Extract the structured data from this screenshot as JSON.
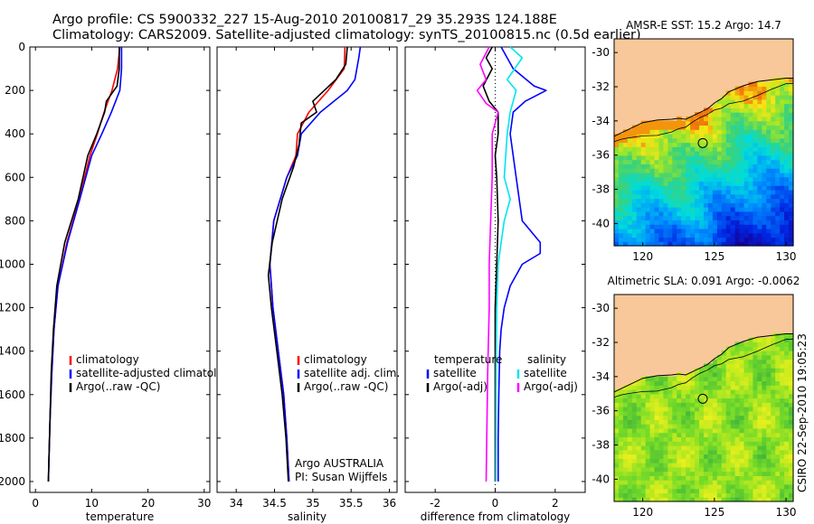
{
  "header": {
    "line1": "Argo profile: CS 5900332_227 15-Aug-2010 20100817_29 35.293S 124.188E",
    "line2": "Climatology: CARS2009. Satellite-adjusted climatology: synTS_20100815.nc (0.5d earlier)"
  },
  "side_label": "CSIRO 22-Sep-2010 19:05:23",
  "colors": {
    "red": "#ff0000",
    "blue": "#0000ff",
    "black": "#000000",
    "cyan": "#00e5ee",
    "magenta": "#ff00ff",
    "land": "#f8c89a"
  },
  "chart_data": [
    {
      "id": "temperature",
      "type": "line",
      "xlabel": "temperature",
      "xlim": [
        -1,
        31
      ],
      "xticks": [
        "0",
        "10",
        "20",
        "30"
      ],
      "ylim": [
        0,
        2050
      ],
      "yticks": [
        "0",
        "200",
        "400",
        "600",
        "800",
        "1000",
        "1200",
        "1400",
        "1600",
        "1800",
        "2000"
      ],
      "legend": [
        "climatology",
        "satellite-adjusted climatology",
        "Argo(..raw -QC)"
      ],
      "series": [
        {
          "name": "climatology",
          "color": "red",
          "pressure": [
            0,
            100,
            200,
            300,
            400,
            500,
            700,
            900,
            1100,
            1300,
            1500,
            1700,
            1900,
            2000
          ],
          "values": [
            15.0,
            14.6,
            13.6,
            12.2,
            11.0,
            9.7,
            7.8,
            5.6,
            4.0,
            3.3,
            2.9,
            2.6,
            2.4,
            2.3
          ]
        },
        {
          "name": "satellite-adjusted climatology",
          "color": "blue",
          "pressure": [
            0,
            100,
            200,
            300,
            400,
            500,
            700,
            900,
            1100,
            1300,
            1500,
            1700,
            1900,
            2000
          ],
          "values": [
            15.3,
            15.3,
            15.0,
            13.5,
            11.8,
            10.0,
            7.9,
            5.7,
            4.0,
            3.3,
            2.9,
            2.6,
            2.4,
            2.3
          ]
        },
        {
          "name": "Argo(..raw -QC)",
          "color": "black",
          "pressure": [
            0,
            100,
            180,
            250,
            300,
            400,
            500,
            700,
            900,
            1100,
            1300,
            1500,
            1700,
            1900,
            2000
          ],
          "values": [
            14.9,
            14.9,
            14.5,
            12.6,
            12.3,
            10.9,
            9.3,
            7.6,
            5.2,
            3.8,
            3.2,
            2.8,
            2.6,
            2.4,
            2.3
          ]
        }
      ]
    },
    {
      "id": "salinity",
      "type": "line",
      "xlabel": "salinity",
      "xlim": [
        33.75,
        36.1
      ],
      "xticks": [
        "34",
        "34.5",
        "35",
        "35.5",
        "36"
      ],
      "ylim": [
        0,
        2050
      ],
      "yticks": [
        "0",
        "200",
        "400",
        "600",
        "800",
        "1000",
        "1200",
        "1400",
        "1600",
        "1800",
        "2000"
      ],
      "legend": [
        "climatology",
        "satellite adj. clim.",
        "Argo(..raw -QC)"
      ],
      "annotation": [
        "Argo AUSTRALIA",
        "PI: Susan Wijffels"
      ],
      "series": [
        {
          "name": "climatology",
          "color": "red",
          "pressure": [
            0,
            100,
            200,
            300,
            400,
            500,
            600,
            800,
            1000,
            1200,
            1400,
            1600,
            1800,
            2000
          ],
          "values": [
            35.42,
            35.41,
            35.2,
            34.95,
            34.8,
            34.78,
            34.66,
            34.49,
            34.44,
            34.48,
            34.55,
            34.62,
            34.66,
            34.69
          ]
        },
        {
          "name": "satellite adj. clim.",
          "color": "blue",
          "pressure": [
            0,
            50,
            150,
            200,
            300,
            400,
            500,
            600,
            800,
            1000,
            1200,
            1400,
            1600,
            1800,
            2000
          ],
          "values": [
            35.62,
            35.6,
            35.55,
            35.45,
            35.1,
            34.85,
            34.8,
            34.66,
            34.49,
            34.44,
            34.48,
            34.55,
            34.62,
            34.66,
            34.69
          ]
        },
        {
          "name": "Argo(..raw -QC)",
          "color": "black",
          "pressure": [
            0,
            80,
            150,
            250,
            300,
            350,
            450,
            550,
            700,
            900,
            1050,
            1200,
            1400,
            1600,
            1800,
            2000
          ],
          "values": [
            35.45,
            35.43,
            35.3,
            35.0,
            35.05,
            34.85,
            34.82,
            34.75,
            34.6,
            34.47,
            34.42,
            34.46,
            34.53,
            34.6,
            34.65,
            34.68
          ]
        }
      ]
    },
    {
      "id": "difference",
      "type": "line",
      "xlabel": "difference from climatology",
      "xlim": [
        -3,
        3
      ],
      "xticks": [
        "-2",
        "0",
        "2"
      ],
      "ylim": [
        0,
        2050
      ],
      "yticks": [
        "0",
        "200",
        "400",
        "600",
        "800",
        "1000",
        "1200",
        "1400",
        "1600",
        "1800",
        "2000"
      ],
      "legend_left_title": "temperature",
      "legend_right_title": "salinity",
      "legend": [
        "satellite",
        "Argo(-adj)",
        "satellite",
        "Argo(-adj)"
      ],
      "series": [
        {
          "name": "temperature satellite",
          "color": "blue",
          "pressure": [
            0,
            100,
            180,
            200,
            250,
            300,
            400,
            600,
            800,
            900,
            950,
            1000,
            1100,
            1200,
            1300,
            1400,
            1600,
            1800,
            2000
          ],
          "values": [
            0.2,
            0.6,
            1.3,
            1.7,
            1.0,
            0.6,
            0.5,
            0.7,
            0.9,
            1.5,
            1.5,
            0.9,
            0.5,
            0.3,
            0.2,
            0.15,
            0.12,
            0.1,
            0.1
          ]
        },
        {
          "name": "temperature Argo(-adj)",
          "color": "black",
          "pressure": [
            0,
            50,
            100,
            180,
            250,
            300,
            400,
            500,
            600,
            800,
            1000,
            1200,
            1500,
            2000
          ],
          "values": [
            -0.1,
            -0.3,
            -0.1,
            -0.4,
            -0.2,
            0.1,
            0.1,
            0.0,
            0.05,
            0.1,
            0.05,
            0.0,
            0.0,
            0.0
          ]
        },
        {
          "name": "salinity satellite",
          "color": "cyan",
          "pressure": [
            0,
            50,
            150,
            200,
            300,
            400,
            600,
            700,
            800,
            900,
            1000,
            1200,
            1500,
            2000
          ],
          "values": [
            0.5,
            0.9,
            0.4,
            0.7,
            0.5,
            0.4,
            0.3,
            0.5,
            0.3,
            0.2,
            0.1,
            0.05,
            0.03,
            0.02
          ]
        },
        {
          "name": "salinity Argo(-adj)",
          "color": "magenta",
          "pressure": [
            0,
            80,
            150,
            200,
            260,
            300,
            400,
            600,
            800,
            1000,
            1200,
            1500,
            2000
          ],
          "values": [
            -0.2,
            -0.5,
            -0.3,
            -0.6,
            -0.3,
            0.1,
            -0.1,
            -0.1,
            -0.15,
            -0.2,
            -0.2,
            -0.25,
            -0.3
          ]
        }
      ]
    },
    {
      "id": "sst_map",
      "type": "heatmap",
      "title": "AMSR-E SST: 15.2 Argo: 14.7",
      "xticks": [
        "120",
        "125",
        "130"
      ],
      "yticks": [
        "-30",
        "-32",
        "-34",
        "-36",
        "-38",
        "-40"
      ],
      "xlim": [
        118,
        130.5
      ],
      "ylim": [
        -41.3,
        -29.2
      ],
      "argo_position": [
        124.188,
        -35.293
      ],
      "coast_lon": [
        118,
        118.5,
        119,
        120,
        121,
        122,
        122.5,
        123,
        123.5,
        124,
        124.5,
        125,
        125.5,
        126,
        127,
        128,
        129,
        130,
        130.5
      ],
      "coast_lat": [
        -34.9,
        -34.7,
        -34.5,
        -34.1,
        -33.95,
        -33.9,
        -33.85,
        -33.9,
        -33.7,
        -33.5,
        -33.3,
        -32.95,
        -32.7,
        -32.3,
        -31.95,
        -31.7,
        -31.6,
        -31.5,
        -31.5
      ]
    },
    {
      "id": "sla_map",
      "type": "heatmap",
      "title": "Altimetric SLA: 0.091 Argo: -0.0062",
      "xticks": [
        "120",
        "125",
        "130"
      ],
      "yticks": [
        "-30",
        "-32",
        "-34",
        "-36",
        "-38",
        "-40"
      ],
      "xlim": [
        118,
        130.5
      ],
      "ylim": [
        -41.3,
        -29.2
      ],
      "argo_position": [
        124.188,
        -35.293
      ],
      "coast_lon": [
        118,
        118.5,
        119,
        120,
        121,
        122,
        122.5,
        123,
        123.5,
        124,
        124.5,
        125,
        125.5,
        126,
        127,
        128,
        129,
        130,
        130.5
      ],
      "coast_lat": [
        -34.9,
        -34.7,
        -34.5,
        -34.1,
        -33.95,
        -33.9,
        -33.85,
        -33.9,
        -33.7,
        -33.5,
        -33.3,
        -32.95,
        -32.7,
        -32.3,
        -31.95,
        -31.7,
        -31.6,
        -31.5,
        -31.5
      ]
    }
  ]
}
